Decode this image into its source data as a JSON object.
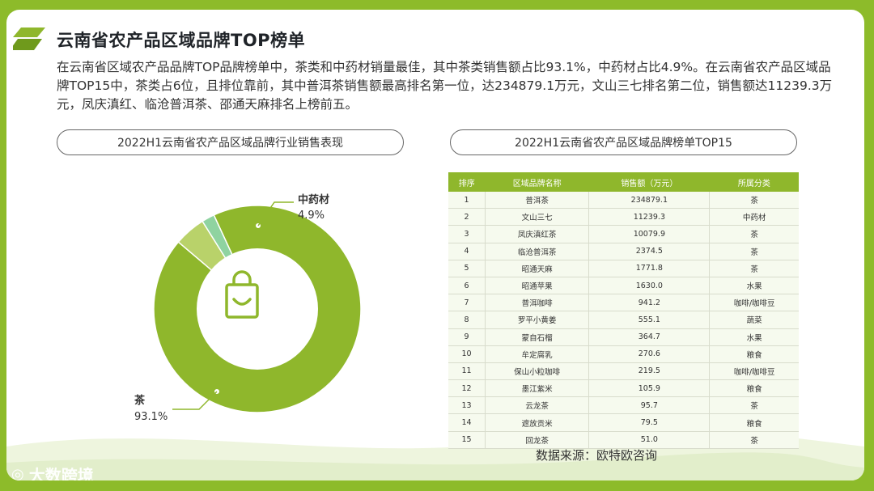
{
  "page": {
    "title": "云南省农产品区域品牌TOP榜单",
    "description": "在云南省区域农产品品牌TOP品牌榜单中，茶类和中药材销量最佳，其中茶类销售额占比93.1%，中药材占比4.9%。在云南省农产品区域品牌TOP15中，茶类占6位，且排位靠前，其中普洱茶销售额最高排名第一位，达234879.1万元，文山三七排名第二位，销售额达11239.3万元，凤庆滇红、临沧普洱茶、邵通天麻排名上榜前五。",
    "source": "数据来源：欧特欧咨询",
    "watermark": "大数跨境"
  },
  "colors": {
    "accent": "#8fb72c",
    "donut_main": "#8fb72c",
    "donut_minor1": "#b9d26a",
    "donut_minor2": "#8fd3a0"
  },
  "chart_data": [
    {
      "type": "pie",
      "title": "2022H1云南省农产品区域品牌行业销售表现",
      "slices": [
        {
          "label": "茶",
          "value": 93.1,
          "display": "93.1%"
        },
        {
          "label": "中药材",
          "value": 4.9,
          "display": "4.9%"
        },
        {
          "label": "",
          "value": 2.0,
          "display": ""
        }
      ]
    },
    {
      "type": "table",
      "title": "2022H1云南省农产品区域品牌榜单TOP15",
      "columns": [
        "排序",
        "区域品牌名称",
        "销售额（万元）",
        "所属分类"
      ],
      "rows": [
        [
          "1",
          "普洱茶",
          "234879.1",
          "茶"
        ],
        [
          "2",
          "文山三七",
          "11239.3",
          "中药材"
        ],
        [
          "3",
          "凤庆滇红茶",
          "10079.9",
          "茶"
        ],
        [
          "4",
          "临沧普洱茶",
          "2374.5",
          "茶"
        ],
        [
          "5",
          "昭通天麻",
          "1771.8",
          "茶"
        ],
        [
          "6",
          "昭通苹果",
          "1630.0",
          "水果"
        ],
        [
          "7",
          "普洱咖啡",
          "941.2",
          "咖啡/咖啡豆"
        ],
        [
          "8",
          "罗平小黄姜",
          "555.1",
          "蔬菜"
        ],
        [
          "9",
          "蒙自石榴",
          "364.7",
          "水果"
        ],
        [
          "10",
          "牟定腐乳",
          "270.6",
          "粮食"
        ],
        [
          "11",
          "保山小粒咖啡",
          "219.5",
          "咖啡/咖啡豆"
        ],
        [
          "12",
          "墨江紫米",
          "105.9",
          "粮食"
        ],
        [
          "13",
          "云龙茶",
          "95.7",
          "茶"
        ],
        [
          "14",
          "遮放贡米",
          "79.5",
          "粮食"
        ],
        [
          "15",
          "回龙茶",
          "51.0",
          "茶"
        ]
      ]
    }
  ]
}
